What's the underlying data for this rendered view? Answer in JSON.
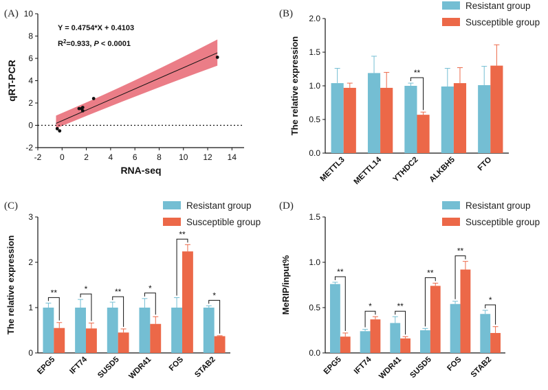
{
  "colors": {
    "resistant": "#74bed3",
    "susceptible": "#ec6848",
    "band": "#e96f7a"
  },
  "chart_data": [
    {
      "id": "A",
      "type": "scatter",
      "panel_label": "(A)",
      "xlabel": "RNA-seq",
      "ylabel": "qRT-PCR",
      "xlim": [
        -2,
        15
      ],
      "ylim": [
        -2,
        10
      ],
      "xticks": [
        "-2",
        "0",
        "2",
        "4",
        "6",
        "8",
        "10",
        "12",
        "14"
      ],
      "yticks": [
        "-2",
        "0",
        "2",
        "4",
        "6",
        "8",
        "10"
      ],
      "points": [
        [
          -0.4,
          -0.3
        ],
        [
          -0.2,
          -0.5
        ],
        [
          1.4,
          1.5
        ],
        [
          1.6,
          1.5
        ],
        [
          1.7,
          1.6
        ],
        [
          1.7,
          1.3
        ],
        [
          2.6,
          2.4
        ],
        [
          12.8,
          6.1
        ]
      ],
      "fit": {
        "slope": 0.4754,
        "intercept": 0.4103
      },
      "equation": "Y = 0.4754*X + 0.4103",
      "r2_text": "=0.933,",
      "p_label": "P",
      "p_text": " < 0.0001"
    },
    {
      "id": "B",
      "type": "bar",
      "panel_label": "(B)",
      "ylabel": "The relative expression",
      "ylim": [
        0,
        2
      ],
      "yticks": [
        "0.0",
        "0.5",
        "1.0",
        "1.5",
        "2.0"
      ],
      "categories": [
        "METTL3",
        "METTL14",
        "YTHDC2",
        "ALKBH5",
        "FTO"
      ],
      "series": [
        {
          "name": "Resistant group",
          "values": [
            1.04,
            1.19,
            1.0,
            0.99,
            1.01
          ],
          "errors": [
            0.22,
            0.25,
            0.04,
            0.27,
            0.28
          ]
        },
        {
          "name": "Susceptible group",
          "values": [
            0.97,
            0.97,
            0.57,
            1.04,
            1.3
          ],
          "errors": [
            0.07,
            0.23,
            0.04,
            0.23,
            0.31
          ]
        }
      ],
      "significance": [
        {
          "category": "YTHDC2",
          "label": "**"
        }
      ]
    },
    {
      "id": "C",
      "type": "bar",
      "panel_label": "(C)",
      "ylabel": "The relative expression",
      "ylim": [
        0,
        3
      ],
      "yticks": [
        "0",
        "1",
        "2",
        "3"
      ],
      "categories": [
        "EPG5",
        "IFT74",
        "SUSD5",
        "WDR41",
        "FOS",
        "STAB2"
      ],
      "series": [
        {
          "name": "Resistant group",
          "values": [
            1.0,
            1.0,
            1.0,
            1.0,
            1.0,
            1.0
          ],
          "errors": [
            0.1,
            0.18,
            0.12,
            0.2,
            0.22,
            0.04
          ]
        },
        {
          "name": "Susceptible group",
          "values": [
            0.55,
            0.54,
            0.45,
            0.64,
            2.24,
            0.37
          ],
          "errors": [
            0.12,
            0.12,
            0.08,
            0.16,
            0.15,
            0.01
          ]
        }
      ],
      "significance": [
        {
          "category": "EPG5",
          "label": "**"
        },
        {
          "category": "IFT74",
          "label": "*"
        },
        {
          "category": "SUSD5",
          "label": "**"
        },
        {
          "category": "WDR41",
          "label": "*"
        },
        {
          "category": "FOS",
          "label": "**"
        },
        {
          "category": "STAB2",
          "label": "*"
        }
      ]
    },
    {
      "id": "D",
      "type": "bar",
      "panel_label": "(D)",
      "ylabel": "MeRIP/input%",
      "ylim": [
        0,
        1.5
      ],
      "yticks": [
        "0.0",
        "0.5",
        "1.0",
        "1.5"
      ],
      "categories": [
        "EPG5",
        "IFT74",
        "WDR41",
        "SUSD5",
        "FOS",
        "STAB2"
      ],
      "series": [
        {
          "name": "Resistant group",
          "values": [
            0.76,
            0.24,
            0.33,
            0.25,
            0.54,
            0.43
          ],
          "errors": [
            0.02,
            0.02,
            0.07,
            0.02,
            0.03,
            0.04
          ]
        },
        {
          "name": "Susceptible group",
          "values": [
            0.18,
            0.37,
            0.16,
            0.74,
            0.92,
            0.22
          ],
          "errors": [
            0.04,
            0.03,
            0.02,
            0.03,
            0.09,
            0.07
          ]
        }
      ],
      "significance": [
        {
          "category": "EPG5",
          "label": "**"
        },
        {
          "category": "IFT74",
          "label": "*"
        },
        {
          "category": "WDR41",
          "label": "**"
        },
        {
          "category": "SUSD5",
          "label": "**"
        },
        {
          "category": "FOS",
          "label": "**"
        },
        {
          "category": "STAB2",
          "label": "*"
        }
      ]
    }
  ]
}
